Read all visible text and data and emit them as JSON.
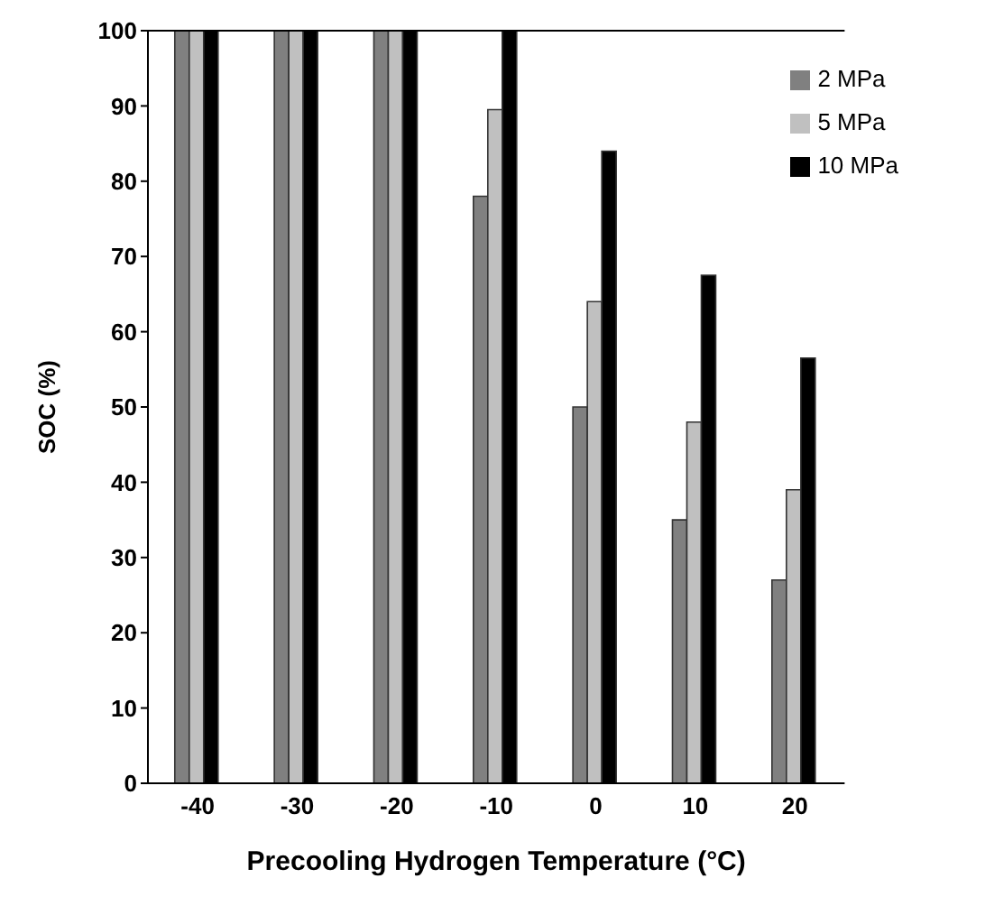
{
  "chart_data": {
    "type": "bar",
    "xlabel": "Precooling Hydrogen Temperature (°C)",
    "ylabel": "SOC (%)",
    "categories": [
      "-40",
      "-30",
      "-20",
      "-10",
      "0",
      "10",
      "20"
    ],
    "series": [
      {
        "name": "2 MPa",
        "color": "#808080",
        "values": [
          100,
          100,
          100,
          78,
          50,
          35,
          27
        ]
      },
      {
        "name": "5 MPa",
        "color": "#c0c0c0",
        "values": [
          100,
          100,
          100,
          89.5,
          64,
          48,
          39
        ]
      },
      {
        "name": "10 MPa",
        "color": "#000000",
        "values": [
          100,
          100,
          100,
          100,
          84,
          67.5,
          56.5
        ]
      }
    ],
    "ylim": [
      0,
      100
    ],
    "yticks": [
      0,
      10,
      20,
      30,
      40,
      50,
      60,
      70,
      80,
      90,
      100
    ],
    "grid": false,
    "legend": "top right"
  }
}
